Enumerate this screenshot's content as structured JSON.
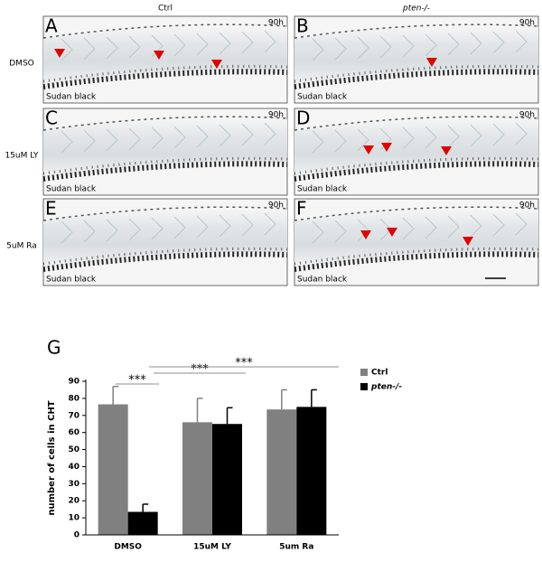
{
  "columns": [
    "Ctrl",
    "pten-/-"
  ],
  "rows": [
    "DMSO",
    "15uM LY",
    "5uM Ra"
  ],
  "panels": [
    {
      "letter": "A",
      "time": "90h",
      "stain": "Sudan black"
    },
    {
      "letter": "B",
      "time": "90h",
      "stain": "Sudan black"
    },
    {
      "letter": "C",
      "time": "90h",
      "stain": "Sudan black"
    },
    {
      "letter": "D",
      "time": "90h",
      "stain": "Sudan black"
    },
    {
      "letter": "E",
      "time": "90h",
      "stain": "Sudan black"
    },
    {
      "letter": "F",
      "time": "90h",
      "stain": "Sudan black"
    }
  ],
  "chart_letter": "G",
  "chart_data": {
    "type": "bar",
    "y_label": "number of cells in CHT",
    "categories": [
      "DMSO",
      "15uM LY",
      "5um Ra"
    ],
    "series": [
      {
        "name": "Ctrl",
        "color": "#808080",
        "values": [
          76.5,
          66,
          73.5
        ],
        "errors": [
          10.5,
          14,
          11.5
        ]
      },
      {
        "name": "pten-/-",
        "color": "#000000",
        "values": [
          13.5,
          65,
          75
        ],
        "errors": [
          4.5,
          9.5,
          10
        ]
      }
    ],
    "ylim": [
      0,
      90
    ],
    "yticks": [
      0,
      10,
      20,
      30,
      40,
      50,
      60,
      70,
      80,
      90
    ],
    "significance": [
      "***",
      "***",
      "***"
    ]
  }
}
